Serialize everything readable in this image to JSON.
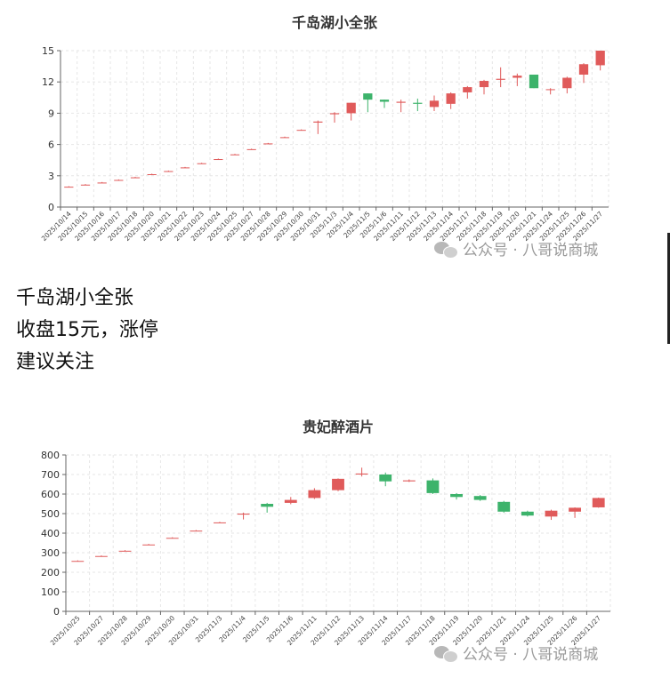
{
  "post": {
    "line1": "千岛湖小全张",
    "line2": "收盘15元，涨停",
    "line3": "建议关注"
  },
  "watermark": {
    "text": "公众号 · 八哥说商城",
    "icon": "wechat-icon"
  },
  "colors": {
    "up": "#e05a5a",
    "down": "#3db36b",
    "axis": "#666666",
    "grid": "#e6e6e6",
    "title": "#333333"
  },
  "chart_data": [
    {
      "type": "candlestick",
      "title": "千岛湖小全张",
      "ylim": [
        0,
        15
      ],
      "yticks": [
        0,
        3,
        6,
        9,
        12,
        15
      ],
      "grid": true,
      "categories": [
        "2025/10/14",
        "2025/10/15",
        "2025/10/16",
        "2025/10/17",
        "2025/10/18",
        "2025/10/20",
        "2025/10/21",
        "2025/10/22",
        "2025/10/23",
        "2025/10/24",
        "2025/10/25",
        "2025/10/27",
        "2025/10/28",
        "2025/10/29",
        "2025/10/30",
        "2025/10/31",
        "2025/11/3",
        "2025/11/4",
        "2025/11/5",
        "2025/11/6",
        "2025/11/11",
        "2025/11/12",
        "2025/11/13",
        "2025/11/14",
        "2025/11/17",
        "2025/11/18",
        "2025/11/19",
        "2025/11/20",
        "2025/11/21",
        "2025/11/24",
        "2025/11/25",
        "2025/11/26",
        "2025/11/27"
      ],
      "ohlc": [
        [
          1.95,
          1.95,
          1.9,
          2.0
        ],
        [
          2.15,
          2.15,
          2.1,
          2.2
        ],
        [
          2.35,
          2.35,
          2.3,
          2.4
        ],
        [
          2.6,
          2.6,
          2.55,
          2.65
        ],
        [
          2.85,
          2.85,
          2.8,
          2.9
        ],
        [
          3.15,
          3.15,
          3.1,
          3.2
        ],
        [
          3.45,
          3.45,
          3.4,
          3.5
        ],
        [
          3.8,
          3.8,
          3.75,
          3.85
        ],
        [
          4.2,
          4.2,
          4.15,
          4.25
        ],
        [
          4.6,
          4.6,
          4.55,
          4.65
        ],
        [
          5.05,
          5.05,
          5.0,
          5.1
        ],
        [
          5.55,
          5.55,
          5.5,
          5.6
        ],
        [
          6.1,
          6.1,
          6.05,
          6.15
        ],
        [
          6.7,
          6.7,
          6.65,
          6.75
        ],
        [
          7.4,
          7.4,
          7.35,
          7.45
        ],
        [
          8.1,
          8.2,
          7.0,
          8.3
        ],
        [
          8.9,
          9.0,
          8.1,
          9.1
        ],
        [
          9.0,
          10.0,
          8.3,
          10.0
        ],
        [
          10.9,
          10.3,
          9.1,
          10.9
        ],
        [
          10.3,
          10.1,
          9.5,
          10.3
        ],
        [
          10.0,
          10.1,
          9.1,
          10.3
        ],
        [
          10.0,
          9.9,
          9.2,
          10.4
        ],
        [
          9.6,
          10.2,
          9.2,
          10.7
        ],
        [
          9.9,
          10.9,
          9.4,
          11.0
        ],
        [
          11.0,
          11.5,
          10.4,
          11.6
        ],
        [
          11.5,
          12.1,
          10.8,
          12.2
        ],
        [
          12.2,
          12.3,
          11.5,
          13.4
        ],
        [
          12.4,
          12.6,
          11.6,
          12.8
        ],
        [
          12.7,
          11.4,
          11.4,
          12.7
        ],
        [
          11.3,
          11.3,
          10.8,
          11.4
        ],
        [
          11.4,
          12.4,
          10.9,
          12.5
        ],
        [
          12.7,
          13.7,
          11.9,
          13.8
        ],
        [
          13.6,
          15.0,
          13.1,
          15.0
        ]
      ]
    },
    {
      "type": "candlestick",
      "title": "贵妃醉酒片",
      "ylim": [
        0,
        800
      ],
      "yticks": [
        0,
        100,
        200,
        300,
        400,
        500,
        600,
        700,
        800
      ],
      "grid": true,
      "categories": [
        "2025/10/25",
        "2025/10/27",
        "2025/10/28",
        "2025/10/29",
        "2025/10/30",
        "2025/10/31",
        "2025/11/3",
        "2025/11/4",
        "2025/11/5",
        "2025/11/6",
        "2025/11/11",
        "2025/11/12",
        "2025/11/13",
        "2025/11/14",
        "2025/11/17",
        "2025/11/18",
        "2025/11/19",
        "2025/11/20",
        "2025/11/21",
        "2025/11/24",
        "2025/11/25",
        "2025/11/26",
        "2025/11/27"
      ],
      "ohlc": [
        [
          258,
          258,
          255,
          261
        ],
        [
          283,
          283,
          280,
          286
        ],
        [
          310,
          310,
          307,
          313
        ],
        [
          342,
          342,
          339,
          345
        ],
        [
          376,
          376,
          373,
          379
        ],
        [
          413,
          413,
          410,
          416
        ],
        [
          455,
          455,
          452,
          458
        ],
        [
          495,
          500,
          470,
          505
        ],
        [
          550,
          535,
          505,
          555
        ],
        [
          555,
          570,
          548,
          585
        ],
        [
          580,
          620,
          575,
          630
        ],
        [
          620,
          678,
          615,
          680
        ],
        [
          700,
          705,
          690,
          735
        ],
        [
          700,
          665,
          640,
          710
        ],
        [
          665,
          670,
          662,
          675
        ],
        [
          670,
          605,
          600,
          680
        ],
        [
          600,
          585,
          572,
          605
        ],
        [
          590,
          570,
          565,
          595
        ],
        [
          560,
          510,
          505,
          565
        ],
        [
          510,
          490,
          485,
          515
        ],
        [
          485,
          515,
          468,
          520
        ],
        [
          510,
          530,
          478,
          532
        ],
        [
          532,
          580,
          530,
          582
        ]
      ]
    }
  ]
}
